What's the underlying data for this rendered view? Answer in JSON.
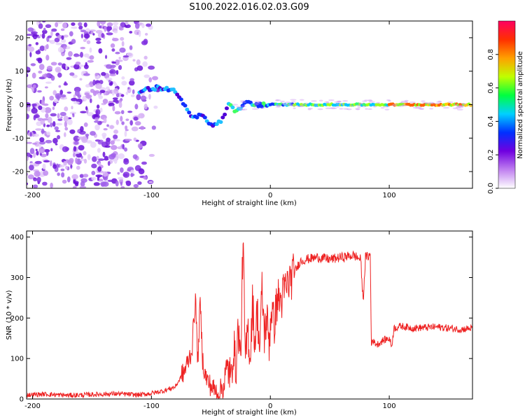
{
  "title": "S100.2022.016.02.03.G09",
  "chart_data": [
    {
      "type": "heatmap",
      "xlabel": "Height of straight line (km)",
      "ylabel": "Frequency (Hz)",
      "xlim": [
        -205,
        170
      ],
      "ylim": [
        -25,
        25
      ],
      "xticks": [
        -200,
        -100,
        0,
        100
      ],
      "yticks": [
        -20,
        -10,
        0,
        10,
        20
      ],
      "colorbar": {
        "label": "Normalized spectral amplitude",
        "range": [
          0,
          1
        ],
        "ticks": [
          0.0,
          0.2,
          0.4,
          0.6,
          0.8
        ],
        "colors": [
          "#ffffff",
          "#c080f0",
          "#7000e0",
          "#0030ff",
          "#00d0ff",
          "#00ff40",
          "#c0ff00",
          "#ffa000",
          "#ff3000",
          "#ff0060"
        ]
      },
      "noise_region_x": [
        -205,
        -90
      ],
      "signal_track": {
        "x": [
          -110,
          -100,
          -90,
          -80,
          -75,
          -70,
          -65,
          -60,
          -55,
          -50,
          -45,
          -40,
          -35,
          -30,
          -25,
          -20,
          -15,
          -10,
          0,
          20,
          50,
          80,
          100,
          130,
          170
        ],
        "y": [
          4,
          5,
          5,
          4,
          2,
          -2,
          -4,
          -3,
          -4,
          -6,
          -6,
          -4,
          0,
          -2,
          -1,
          1,
          0,
          0,
          0,
          0,
          0,
          0,
          0,
          0,
          0
        ]
      }
    },
    {
      "type": "line",
      "xlabel": "Height of straight line (km)",
      "ylabel": "SNR (10 * v/v)",
      "xlim": [
        -205,
        170
      ],
      "ylim": [
        0,
        415
      ],
      "xticks": [
        -200,
        -100,
        0,
        100
      ],
      "yticks": [
        0,
        100,
        200,
        300,
        400
      ],
      "color": "#ee2222",
      "series": [
        {
          "x": [
            -205,
            -190,
            -170,
            -150,
            -130,
            -110,
            -100,
            -90,
            -80,
            -72,
            -66,
            -63,
            -61,
            -59,
            -57,
            -55,
            -52,
            -48,
            -44,
            -40,
            -35,
            -33,
            -31,
            -29,
            -27,
            -25,
            -23,
            -21,
            -19,
            -17,
            -15,
            -13,
            -11,
            -9,
            -7,
            -5,
            -3,
            -1,
            1,
            3,
            6,
            9,
            12,
            16,
            20,
            25,
            30,
            40,
            50,
            60,
            70,
            76,
            78,
            80,
            84,
            85,
            86,
            87,
            90,
            95,
            100,
            102,
            104,
            110,
            120,
            140,
            160,
            170
          ],
          "y": [
            10,
            12,
            9,
            11,
            13,
            10,
            14,
            20,
            30,
            70,
            120,
            250,
            90,
            240,
            100,
            60,
            40,
            25,
            15,
            30,
            80,
            40,
            140,
            70,
            180,
            90,
            400,
            80,
            180,
            100,
            240,
            140,
            220,
            120,
            270,
            160,
            200,
            140,
            230,
            180,
            250,
            240,
            270,
            290,
            310,
            340,
            345,
            350,
            345,
            350,
            355,
            345,
            240,
            350,
            355,
            130,
            150,
            140,
            135,
            145,
            150,
            130,
            175,
            180,
            175,
            178,
            172,
            175
          ]
        }
      ]
    }
  ]
}
